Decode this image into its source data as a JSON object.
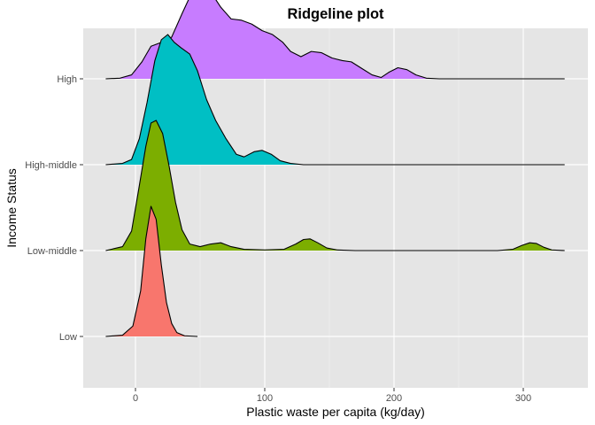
{
  "chart_data": {
    "type": "ridgeline",
    "title": "Ridgeline plot",
    "xlabel": "Plastic waste per capita (kg/day)",
    "ylabel": "Income Status",
    "xlim": [
      -40,
      350
    ],
    "x_ticks": [
      0,
      100,
      200,
      300
    ],
    "x_minor_ticks": [
      50,
      150,
      250
    ],
    "categories": [
      "Low",
      "Low-middle",
      "High-middle",
      "High"
    ],
    "grid": true,
    "background": "#e5e5e5",
    "outline_color": "#000000",
    "series": [
      {
        "name": "Low",
        "color": "#f8766d",
        "range": [
          -23,
          332
        ],
        "density": [
          [
            -23,
            0
          ],
          [
            -10,
            0.01
          ],
          [
            -2,
            0.08
          ],
          [
            4,
            0.35
          ],
          [
            8,
            0.75
          ],
          [
            12,
            1.0
          ],
          [
            16,
            0.9
          ],
          [
            20,
            0.55
          ],
          [
            24,
            0.26
          ],
          [
            28,
            0.1
          ],
          [
            32,
            0.03
          ],
          [
            38,
            0.005
          ],
          [
            48,
            0
          ]
        ]
      },
      {
        "name": "Low-middle",
        "color": "#7cae00",
        "range": [
          -23,
          332
        ],
        "density": [
          [
            -23,
            0
          ],
          [
            -10,
            0.03
          ],
          [
            -3,
            0.15
          ],
          [
            3,
            0.5
          ],
          [
            8,
            0.8
          ],
          [
            12,
            0.98
          ],
          [
            16,
            1.0
          ],
          [
            21,
            0.9
          ],
          [
            26,
            0.65
          ],
          [
            31,
            0.37
          ],
          [
            36,
            0.16
          ],
          [
            42,
            0.05
          ],
          [
            50,
            0.03
          ],
          [
            58,
            0.05
          ],
          [
            66,
            0.06
          ],
          [
            74,
            0.03
          ],
          [
            84,
            0.01
          ],
          [
            100,
            0.005
          ],
          [
            115,
            0.01
          ],
          [
            124,
            0.05
          ],
          [
            130,
            0.085
          ],
          [
            135,
            0.09
          ],
          [
            141,
            0.06
          ],
          [
            148,
            0.02
          ],
          [
            156,
            0.005
          ],
          [
            170,
            0
          ],
          [
            280,
            0
          ],
          [
            292,
            0.01
          ],
          [
            299,
            0.04
          ],
          [
            305,
            0.06
          ],
          [
            310,
            0.055
          ],
          [
            316,
            0.025
          ],
          [
            322,
            0.005
          ],
          [
            332,
            0
          ]
        ]
      },
      {
        "name": "High-middle",
        "color": "#00bfc4",
        "range": [
          -23,
          332
        ],
        "density": [
          [
            -23,
            0
          ],
          [
            -10,
            0.01
          ],
          [
            -3,
            0.04
          ],
          [
            3,
            0.2
          ],
          [
            9,
            0.48
          ],
          [
            15,
            0.8
          ],
          [
            20,
            0.96
          ],
          [
            25,
            1.0
          ],
          [
            30,
            0.94
          ],
          [
            35,
            0.9
          ],
          [
            42,
            0.85
          ],
          [
            48,
            0.72
          ],
          [
            55,
            0.5
          ],
          [
            62,
            0.34
          ],
          [
            70,
            0.2
          ],
          [
            78,
            0.08
          ],
          [
            84,
            0.06
          ],
          [
            92,
            0.1
          ],
          [
            98,
            0.11
          ],
          [
            105,
            0.08
          ],
          [
            112,
            0.03
          ],
          [
            120,
            0.01
          ],
          [
            130,
            0
          ],
          [
            332,
            0
          ]
        ]
      },
      {
        "name": "High",
        "color": "#c77cff",
        "range": [
          -23,
          332
        ],
        "density": [
          [
            -23,
            0
          ],
          [
            -12,
            0.005
          ],
          [
            -3,
            0.03
          ],
          [
            5,
            0.13
          ],
          [
            12,
            0.25
          ],
          [
            20,
            0.28
          ],
          [
            28,
            0.32
          ],
          [
            36,
            0.5
          ],
          [
            43,
            0.65
          ],
          [
            50,
            0.7
          ],
          [
            58,
            0.67
          ],
          [
            66,
            0.55
          ],
          [
            74,
            0.46
          ],
          [
            82,
            0.45
          ],
          [
            90,
            0.42
          ],
          [
            98,
            0.37
          ],
          [
            106,
            0.34
          ],
          [
            114,
            0.28
          ],
          [
            120,
            0.21
          ],
          [
            128,
            0.17
          ],
          [
            136,
            0.21
          ],
          [
            144,
            0.2
          ],
          [
            152,
            0.16
          ],
          [
            160,
            0.14
          ],
          [
            167,
            0.13
          ],
          [
            175,
            0.08
          ],
          [
            183,
            0.03
          ],
          [
            190,
            0.01
          ],
          [
            196,
            0.05
          ],
          [
            203,
            0.085
          ],
          [
            210,
            0.07
          ],
          [
            217,
            0.03
          ],
          [
            225,
            0.005
          ],
          [
            235,
            0
          ],
          [
            332,
            0
          ]
        ]
      }
    ]
  }
}
